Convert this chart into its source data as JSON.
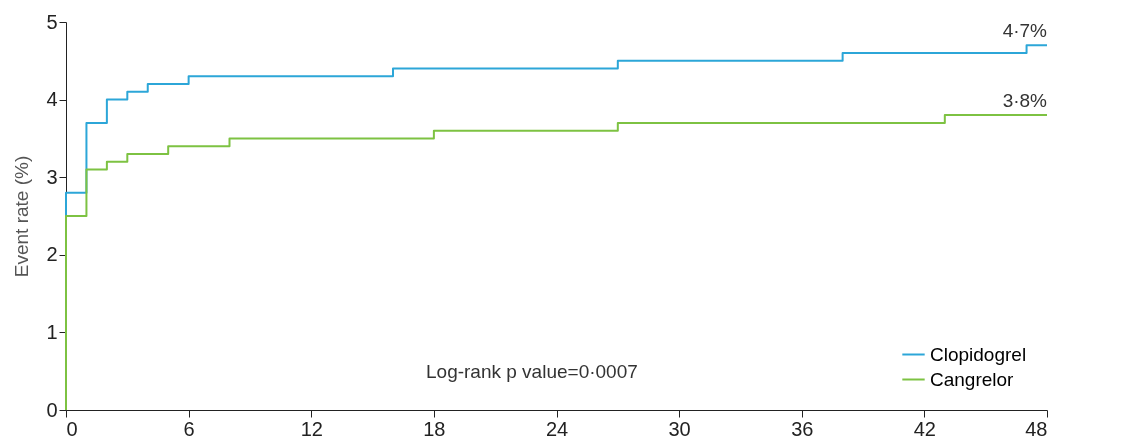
{
  "chart_data": {
    "type": "step",
    "ylabel": "Event rate (%)",
    "xlim": [
      0,
      48
    ],
    "xticks": [
      0,
      6,
      12,
      18,
      24,
      30,
      36,
      42,
      48
    ],
    "ylim": [
      0,
      5
    ],
    "yticks": [
      0,
      1,
      2,
      3,
      4,
      5
    ],
    "grid": false,
    "legend": "bottom right",
    "marker": "none",
    "line_style": "solid",
    "series": [
      {
        "name": "Clopidogrel",
        "color": "#2ca6d8",
        "x": [
          0,
          0,
          1,
          2,
          3,
          4,
          6,
          16,
          27,
          38,
          47,
          48
        ],
        "values": [
          0,
          2.8,
          3.7,
          4.0,
          4.1,
          4.2,
          4.3,
          4.4,
          4.5,
          4.6,
          4.7,
          4.7
        ]
      },
      {
        "name": "Cangrelor",
        "color": "#7dc242",
        "x": [
          0,
          0,
          1,
          2,
          3,
          5,
          8,
          18,
          27,
          43,
          48
        ],
        "values": [
          0,
          2.5,
          3.1,
          3.2,
          3.3,
          3.4,
          3.5,
          3.6,
          3.7,
          3.8,
          3.8
        ]
      }
    ],
    "annotations": [
      {
        "text": "4·7%",
        "x": 48,
        "y": 4.7
      },
      {
        "text": "3·8%",
        "x": 48,
        "y": 3.8
      },
      "Log-rank p value=0·0007"
    ]
  }
}
